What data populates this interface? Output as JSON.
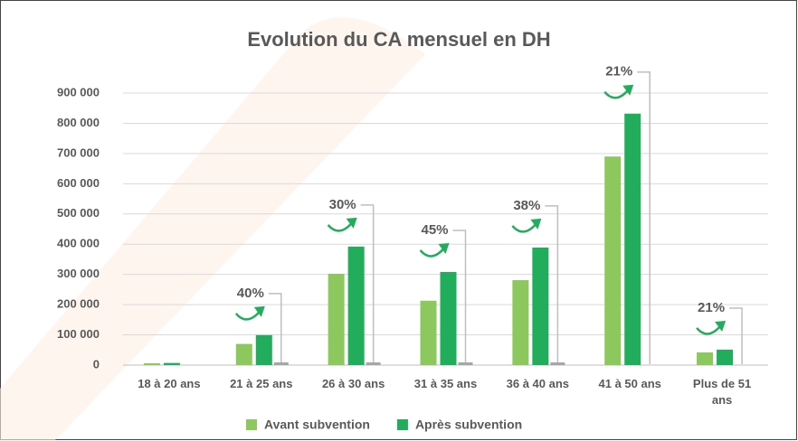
{
  "chart_data": {
    "type": "bar",
    "title": "Evolution du CA mensuel en DH",
    "categories": [
      "18 à 20 ans",
      "21 à 25 ans",
      "26 à 30 ans",
      "31 à 35 ans",
      "36 à 40 ans",
      "41 à 50 ans",
      "Plus de 51 ans"
    ],
    "series": [
      {
        "name": "Avant subvention",
        "color": "#8cc85e",
        "values": [
          6000,
          70000,
          302000,
          213000,
          281000,
          690000,
          42000
        ]
      },
      {
        "name": "Après subvention",
        "color": "#21ad5b",
        "values": [
          7000,
          99000,
          392000,
          308000,
          389000,
          832000,
          51000
        ]
      }
    ],
    "annotations": [
      null,
      "40%",
      "30%",
      "45%",
      "38%",
      "21%",
      "21%"
    ],
    "ylim": [
      0,
      900000
    ],
    "yticks": [
      0,
      {
        "value": 100000,
        "label": "100 000"
      },
      {
        "value": 200000,
        "label": "200 000"
      },
      {
        "value": 300000,
        "label": "300 000"
      },
      {
        "value": 400000,
        "label": "400 000"
      },
      {
        "value": 500000,
        "label": "500 000"
      },
      {
        "value": 600000,
        "label": "600 000"
      },
      {
        "value": 700000,
        "label": "700 000"
      },
      {
        "value": 800000,
        "label": "800 000"
      },
      {
        "value": 900000,
        "label": "900 000"
      }
    ],
    "grid": true,
    "legend": "bottom"
  }
}
